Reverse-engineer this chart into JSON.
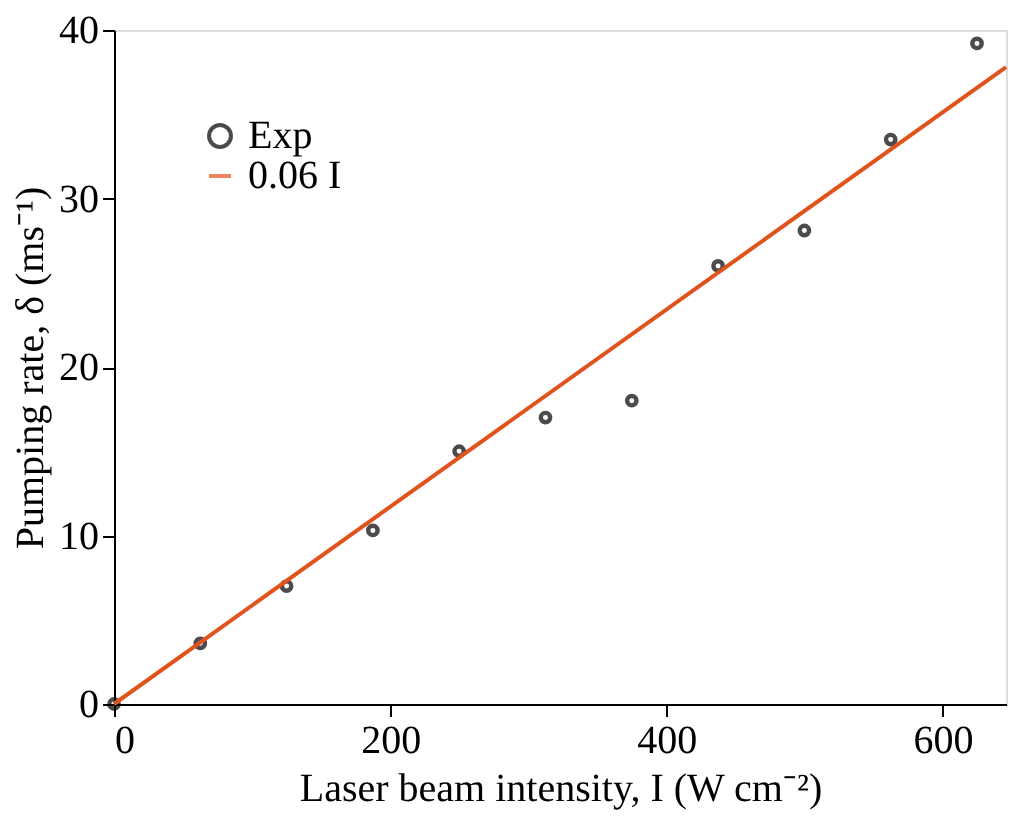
{
  "chart_data": {
    "type": "scatter",
    "xlabel": "Laser beam intensity, I (W cm⁻²)",
    "ylabel": "Pumping rate, δ (ms⁻¹)",
    "xlim": [
      0,
      646
    ],
    "ylim": [
      0,
      40
    ],
    "xticks": [
      0,
      200,
      400,
      600
    ],
    "yticks": [
      0,
      10,
      20,
      30,
      40
    ],
    "grid": false,
    "legend": "top left",
    "series": [
      {
        "name": "Exp",
        "color": "#000000",
        "marker": "circle",
        "x": [
          0,
          62.5,
          125,
          187.5,
          250,
          312.5,
          375,
          437.5,
          500,
          562.5,
          625
        ],
        "values": [
          0,
          3.6,
          7.0,
          10.3,
          15.0,
          17.0,
          18.0,
          26.0,
          28.1,
          33.5,
          39.2
        ]
      },
      {
        "name": "0.06 I",
        "type": "line",
        "color": "#e0531c",
        "line_style": "solid",
        "x": [
          0,
          646
        ],
        "values": [
          0,
          37.8
        ]
      }
    ]
  }
}
